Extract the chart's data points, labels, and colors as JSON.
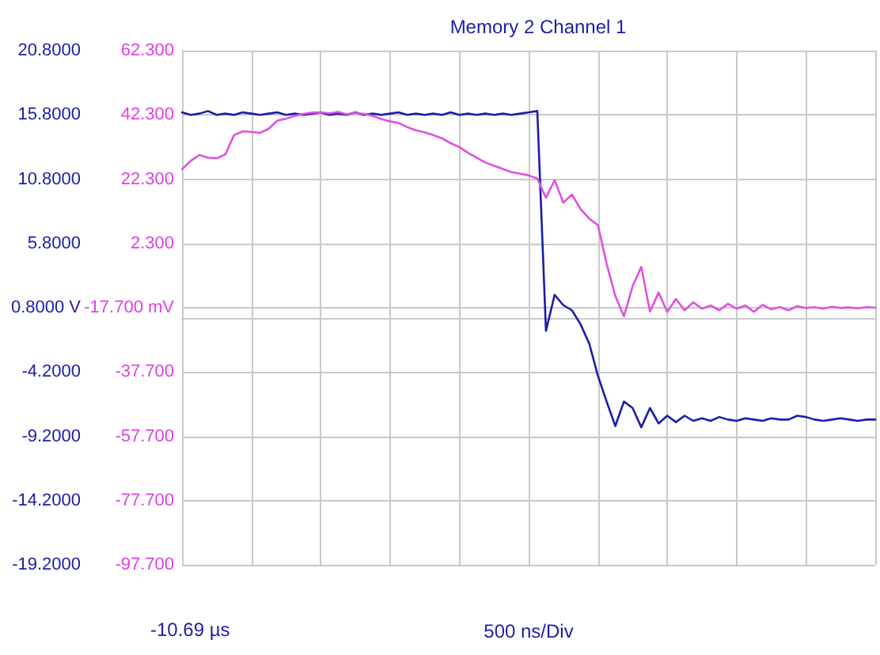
{
  "chart_data": {
    "type": "line",
    "title": "Memory 2 Channel 1",
    "xlabel": "500 ns/Div",
    "annotations": [
      "-10.69 µs"
    ],
    "categories": [
      null,
      null,
      null,
      null,
      null,
      null,
      null,
      null,
      null,
      null,
      null,
      null,
      null,
      null,
      null,
      null,
      null,
      null,
      null,
      null,
      null,
      null,
      null,
      null,
      null,
      null,
      null,
      null,
      null,
      null,
      null,
      null,
      null,
      null,
      null,
      null,
      null,
      null,
      null,
      null,
      null,
      null,
      null,
      null,
      null,
      null,
      null,
      null,
      null,
      null,
      null,
      null,
      null,
      null,
      null,
      null,
      null,
      null,
      null,
      null,
      null,
      null,
      null,
      null,
      null,
      null,
      null,
      null,
      null,
      null,
      null,
      null,
      null,
      null,
      null,
      null,
      null,
      null,
      null,
      null,
      null
    ],
    "ylim": [
      -19.2,
      20.8
    ],
    "yticks": [
      {
        "value": -19.2,
        "label": "-19.2000"
      },
      {
        "value": -14.2,
        "label": "-14.2000"
      },
      {
        "value": -9.2,
        "label": "-9.2000"
      },
      {
        "value": -4.2,
        "label": "-4.2000"
      },
      {
        "value": 0.8,
        "label": "0.8000 V"
      },
      {
        "value": 5.8,
        "label": "5.8000"
      },
      {
        "value": 10.8,
        "label": "10.8000"
      },
      {
        "value": 15.8,
        "label": "15.8000"
      },
      {
        "value": 20.8,
        "label": "20.8000"
      }
    ],
    "y2lim": [
      -97.7,
      62.3
    ],
    "y2ticks": [
      {
        "value": -97.7,
        "label": "-97.700"
      },
      {
        "value": -77.7,
        "label": "-77.700"
      },
      {
        "value": -57.7,
        "label": "-57.700"
      },
      {
        "value": -37.7,
        "label": "-37.700"
      },
      {
        "value": -17.7,
        "label": "-17.700 mV"
      },
      {
        "value": 2.3,
        "label": "2.300"
      },
      {
        "value": 22.3,
        "label": "22.300"
      },
      {
        "value": 42.3,
        "label": "42.300"
      },
      {
        "value": 62.3,
        "label": "62.300"
      }
    ],
    "grid": true,
    "tick_labels": "y",
    "line_style": "solid",
    "series": [
      {
        "color": "#1c1caa",
        "values": [
          16.0,
          15.8,
          15.9,
          16.1,
          15.8,
          15.9,
          15.8,
          16.0,
          15.9,
          15.8,
          15.9,
          16.0,
          15.8,
          15.9,
          15.8,
          15.9,
          16.0,
          15.8,
          15.9,
          15.8,
          16.0,
          15.8,
          15.9,
          15.8,
          15.9,
          16.0,
          15.8,
          15.9,
          15.8,
          15.9,
          15.8,
          16.0,
          15.8,
          15.9,
          15.8,
          15.9,
          15.8,
          15.9,
          15.8,
          15.9,
          16.0,
          16.1,
          -1.0,
          1.8,
          1.0,
          0.6,
          -0.5,
          -2.0,
          -4.5,
          -6.5,
          -8.4,
          -6.5,
          -7.0,
          -8.5,
          -7.0,
          -8.2,
          -7.6,
          -8.1,
          -7.6,
          -8.0,
          -7.8,
          -8.0,
          -7.7,
          -7.9,
          -8.0,
          -7.8,
          -7.9,
          -8.0,
          -7.8,
          -7.9,
          -7.9,
          -7.6,
          -7.7,
          -7.9,
          -8.0,
          -7.9,
          -7.8,
          -7.9,
          -8.0,
          -7.9,
          -7.9
        ]
      },
      {
        "color": "#e050e0",
        "axis": "y2",
        "values": [
          25.4,
          28,
          29.8,
          29,
          28.8,
          30,
          36,
          37.2,
          37,
          36.7,
          38,
          40.5,
          41.1,
          42,
          42.6,
          43,
          43.1,
          42.8,
          43.2,
          42.5,
          42.9,
          42.6,
          42,
          41,
          40.3,
          39.8,
          38.5,
          37.5,
          36.9,
          36,
          35,
          33.5,
          32.3,
          30.5,
          29,
          27.5,
          26.5,
          25.5,
          24.5,
          24,
          23.5,
          22.5,
          16.5,
          22,
          15,
          17.5,
          13,
          10,
          8,
          -4,
          -14,
          -20.4,
          -11,
          -5,
          -18.9,
          -13,
          -19,
          -15,
          -18.5,
          -16,
          -18,
          -17,
          -18.5,
          -16.5,
          -18,
          -17,
          -19,
          -16.8,
          -18.2,
          -17.5,
          -18.5,
          -17.2,
          -17.8,
          -17.5,
          -18,
          -17.4,
          -17.8,
          -17.6,
          -17.9,
          -17.5,
          -17.7
        ]
      }
    ]
  }
}
